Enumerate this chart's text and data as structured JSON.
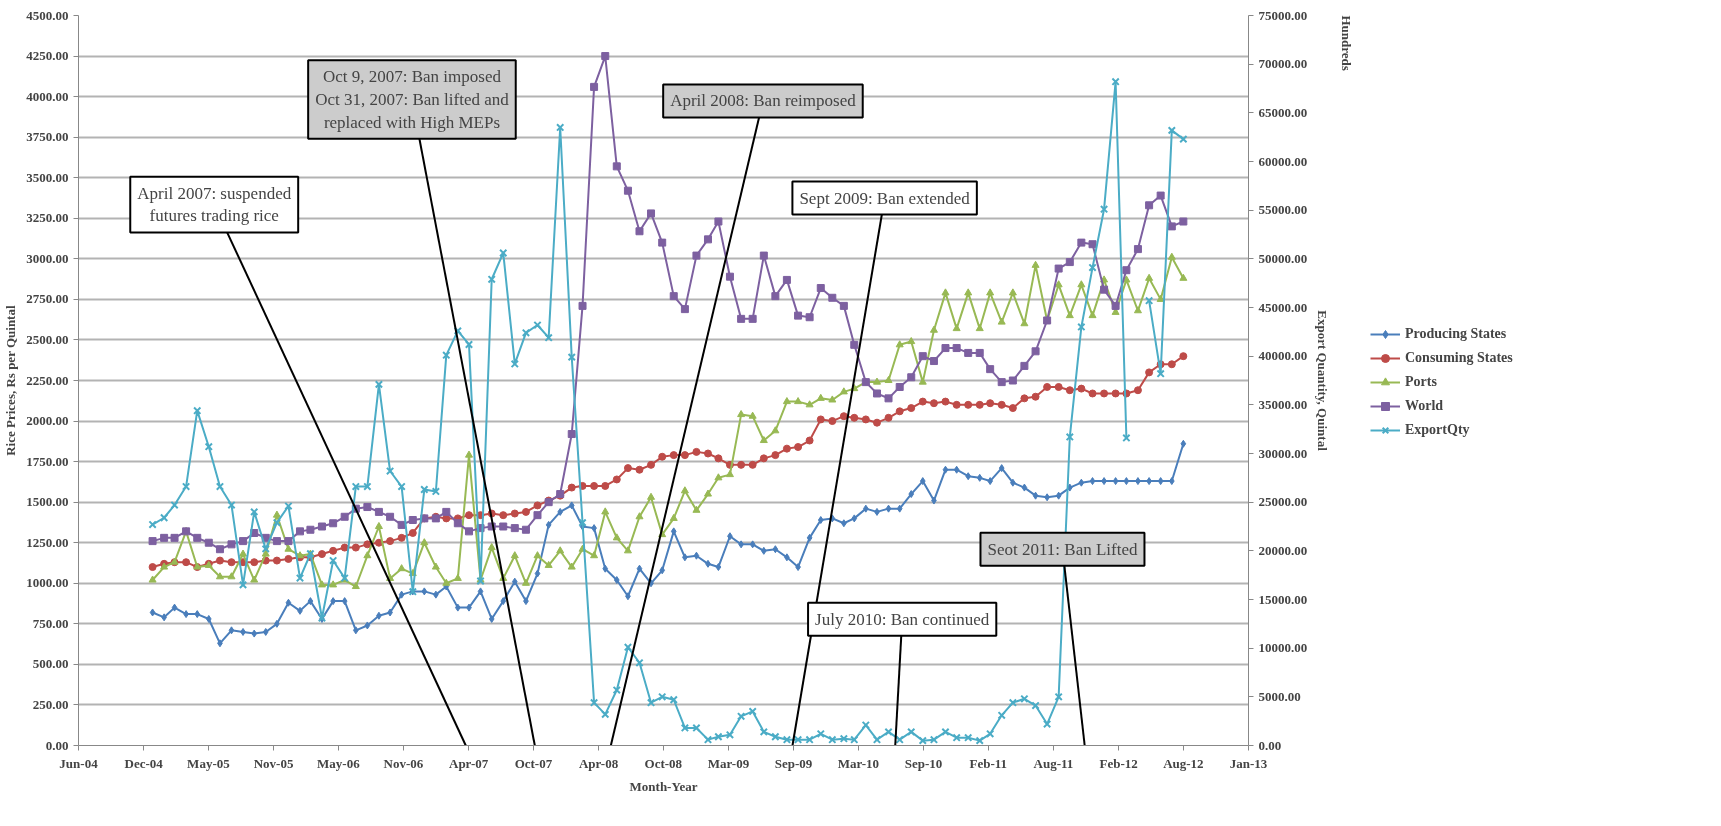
{
  "chart_data": {
    "type": "line",
    "xlabel": "Month-Year",
    "ylabel": "Rice Prices, Rs per Quintal",
    "y2label": "Export Quantity, Quintal",
    "x": [
      "2005-01",
      "2005-02",
      "2005-03",
      "2005-04",
      "2005-05",
      "2005-06",
      "2005-07",
      "2005-08",
      "2005-09",
      "2005-10",
      "2005-11",
      "2005-12",
      "2006-01",
      "2006-02",
      "2006-03",
      "2006-04",
      "2006-05",
      "2006-06",
      "2006-07",
      "2006-08",
      "2006-09",
      "2006-10",
      "2006-11",
      "2006-12",
      "2007-01",
      "2007-02",
      "2007-03",
      "2007-04",
      "2007-05",
      "2007-06",
      "2007-07",
      "2007-08",
      "2007-09",
      "2007-10",
      "2007-11",
      "2007-12",
      "2008-01",
      "2008-02",
      "2008-03",
      "2008-04",
      "2008-05",
      "2008-06",
      "2008-07",
      "2008-08",
      "2008-09",
      "2008-10",
      "2008-11",
      "2008-12",
      "2009-01",
      "2009-02",
      "2009-03",
      "2009-04",
      "2009-05",
      "2009-06",
      "2009-07",
      "2009-08",
      "2009-09",
      "2009-10",
      "2009-11",
      "2009-12",
      "2010-01",
      "2010-02",
      "2010-03",
      "2010-04",
      "2010-05",
      "2010-06",
      "2010-07",
      "2010-08",
      "2010-09",
      "2010-10",
      "2010-11",
      "2010-12",
      "2011-01",
      "2011-02",
      "2011-03",
      "2011-04",
      "2011-05",
      "2011-06",
      "2011-07",
      "2011-08",
      "2011-09",
      "2011-10",
      "2011-11",
      "2011-12",
      "2012-01",
      "2012-02",
      "2012-03",
      "2012-04",
      "2012-05",
      "2012-06",
      "2012-07",
      "2012-08"
    ],
    "series": [
      {
        "name": "Producing States",
        "color": "#4a7ebb",
        "marker": "diamond",
        "values": [
          820,
          790,
          850,
          810,
          810,
          780,
          630,
          710,
          700,
          690,
          700,
          750,
          880,
          830,
          890,
          780,
          890,
          890,
          710,
          740,
          800,
          820,
          930,
          950,
          950,
          930,
          980,
          850,
          850,
          950,
          780,
          890,
          1010,
          890,
          1060,
          1360,
          1440,
          1480,
          1350,
          1340,
          1090,
          1020,
          920,
          1090,
          1000,
          1080,
          1320,
          1160,
          1170,
          1120,
          1100,
          1290,
          1240,
          1240,
          1200,
          1210,
          1160,
          1100,
          1280,
          1390,
          1400,
          1370,
          1400,
          1460,
          1440,
          1460,
          1460,
          1550,
          1630,
          1510,
          1700,
          1700,
          1660,
          1650,
          1630,
          1710,
          1620,
          1590,
          1540,
          1530,
          1540,
          1590,
          1620,
          1630,
          1630,
          1630,
          1630,
          1630,
          1630,
          1630,
          1630,
          1860
        ]
      },
      {
        "name": "Consuming States",
        "color": "#be4b48",
        "marker": "circle",
        "values": [
          1100,
          1120,
          1130,
          1130,
          1100,
          1120,
          1140,
          1130,
          1130,
          1130,
          1140,
          1140,
          1150,
          1160,
          1160,
          1180,
          1200,
          1220,
          1220,
          1240,
          1250,
          1260,
          1280,
          1310,
          1400,
          1410,
          1400,
          1400,
          1420,
          1420,
          1430,
          1420,
          1430,
          1440,
          1480,
          1510,
          1540,
          1590,
          1600,
          1600,
          1600,
          1640,
          1710,
          1700,
          1730,
          1780,
          1790,
          1790,
          1810,
          1800,
          1770,
          1730,
          1730,
          1730,
          1770,
          1790,
          1830,
          1840,
          1880,
          2010,
          2000,
          2030,
          2020,
          2010,
          1990,
          2020,
          2060,
          2080,
          2120,
          2110,
          2120,
          2100,
          2100,
          2100,
          2110,
          2100,
          2080,
          2140,
          2150,
          2210,
          2210,
          2190,
          2200,
          2170,
          2170,
          2170,
          2170,
          2190,
          2300,
          2350,
          2350,
          2400
        ]
      },
      {
        "name": "Ports",
        "color": "#98b954",
        "marker": "triangle",
        "values": [
          1020,
          1100,
          1130,
          1320,
          1100,
          1110,
          1040,
          1040,
          1180,
          1020,
          1180,
          1420,
          1210,
          1170,
          1180,
          990,
          990,
          1020,
          980,
          1170,
          1350,
          1030,
          1090,
          1060,
          1250,
          1100,
          1000,
          1030,
          1790,
          1020,
          1220,
          1030,
          1170,
          1000,
          1170,
          1110,
          1200,
          1100,
          1210,
          1170,
          1440,
          1280,
          1200,
          1410,
          1530,
          1300,
          1400,
          1570,
          1450,
          1550,
          1650,
          1670,
          2040,
          2030,
          1880,
          1940,
          2120,
          2120,
          2100,
          2140,
          2130,
          2180,
          2200,
          2240,
          2240,
          2250,
          2470,
          2490,
          2240,
          2560,
          2790,
          2570,
          2790,
          2570,
          2790,
          2610,
          2790,
          2600,
          2960,
          2620,
          2840,
          2650,
          2840,
          2650,
          2870,
          2670,
          2870,
          2680,
          2880,
          2750,
          3010,
          2880
        ]
      },
      {
        "name": "World",
        "color": "#7d60a0",
        "marker": "square",
        "values": [
          1260,
          1280,
          1280,
          1320,
          1280,
          1250,
          1210,
          1240,
          1260,
          1310,
          1280,
          1260,
          1260,
          1320,
          1330,
          1350,
          1370,
          1410,
          1460,
          1470,
          1440,
          1410,
          1360,
          1390,
          1400,
          1400,
          1440,
          1370,
          1320,
          1340,
          1350,
          1350,
          1340,
          1330,
          1420,
          1500,
          1550,
          1920,
          2710,
          4060,
          4250,
          3570,
          3420,
          3170,
          3280,
          3100,
          2770,
          2690,
          3020,
          3120,
          3230,
          2890,
          2630,
          2630,
          3020,
          2770,
          2870,
          2650,
          2640,
          2820,
          2760,
          2710,
          2470,
          2240,
          2170,
          2140,
          2210,
          2270,
          2400,
          2370,
          2450,
          2450,
          2420,
          2420,
          2320,
          2240,
          2250,
          2340,
          2430,
          2620,
          2940,
          2980,
          3100,
          3090,
          2810,
          2710,
          2930,
          3060,
          3330,
          3390,
          3200,
          3230
        ]
      },
      {
        "name": "ExportQty",
        "color": "#4bacc6",
        "marker": "cross",
        "axis": "y2",
        "values": [
          22700,
          23400,
          24700,
          26600,
          34400,
          30700,
          26600,
          24700,
          16500,
          24000,
          20200,
          22900,
          24600,
          17200,
          19700,
          13100,
          19000,
          17200,
          26600,
          26600,
          37100,
          28200,
          26600,
          15800,
          26300,
          26100,
          40100,
          42600,
          41200,
          16900,
          47900,
          50600,
          39200,
          42400,
          43200,
          41900,
          63500,
          39900,
          22900,
          4400,
          3200,
          5700,
          10100,
          8500,
          4400,
          5000,
          4700,
          1800,
          1800,
          600,
          900,
          1100,
          3000,
          3500,
          1400,
          900,
          600,
          600,
          600,
          1200,
          600,
          700,
          600,
          2100,
          600,
          1400,
          600,
          1400,
          500,
          600,
          1400,
          800,
          800,
          500,
          1200,
          3100,
          4400,
          4800,
          4100,
          2200,
          5000,
          31700,
          43000,
          49100,
          55100,
          68200,
          31600,
          null,
          45700,
          38200,
          63200,
          62300
        ]
      }
    ],
    "xlim": [
      "2004-06-16",
      "2013-01-23"
    ],
    "xticks": [
      {
        "value": "2004-06-16",
        "label": "Jun-04"
      },
      {
        "value": "2004-12-08",
        "label": "Dec-04"
      },
      {
        "value": "2005-05-31",
        "label": "May-05"
      },
      {
        "value": "2005-11-22",
        "label": "Nov-05"
      },
      {
        "value": "2006-05-15",
        "label": "May-06"
      },
      {
        "value": "2006-11-06",
        "label": "Nov-06"
      },
      {
        "value": "2007-04-30",
        "label": "Apr-07"
      },
      {
        "value": "2007-10-21",
        "label": "Oct-07"
      },
      {
        "value": "2008-04-13",
        "label": "Apr-08"
      },
      {
        "value": "2008-10-04",
        "label": "Oct-08"
      },
      {
        "value": "2009-03-28",
        "label": "Mar-09"
      },
      {
        "value": "2009-09-19",
        "label": "Sep-09"
      },
      {
        "value": "2010-03-12",
        "label": "Mar-10"
      },
      {
        "value": "2010-09-03",
        "label": "Sep-10"
      },
      {
        "value": "2011-02-24",
        "label": "Feb-11"
      },
      {
        "value": "2011-08-18",
        "label": "Aug-11"
      },
      {
        "value": "2012-02-09",
        "label": "Feb-12"
      },
      {
        "value": "2012-08-01",
        "label": "Aug-12"
      },
      {
        "value": "2013-01-23",
        "label": "Jan-13"
      }
    ],
    "ylim": [
      0,
      4500
    ],
    "yticks": [
      {
        "value": 0,
        "label": "0.00"
      },
      {
        "value": 250,
        "label": "250.00"
      },
      {
        "value": 500,
        "label": "500.00"
      },
      {
        "value": 750,
        "label": "750.00"
      },
      {
        "value": 1000,
        "label": "1000.00"
      },
      {
        "value": 1250,
        "label": "1250.00"
      },
      {
        "value": 1500,
        "label": "1500.00"
      },
      {
        "value": 1750,
        "label": "1750.00"
      },
      {
        "value": 2000,
        "label": "2000.00"
      },
      {
        "value": 2250,
        "label": "2250.00"
      },
      {
        "value": 2500,
        "label": "2500.00"
      },
      {
        "value": 2750,
        "label": "2750.00"
      },
      {
        "value": 3000,
        "label": "3000.00"
      },
      {
        "value": 3250,
        "label": "3250.00"
      },
      {
        "value": 3500,
        "label": "3500.00"
      },
      {
        "value": 3750,
        "label": "3750.00"
      },
      {
        "value": 4000,
        "label": "4000.00"
      },
      {
        "value": 4250,
        "label": "4250.00"
      },
      {
        "value": 4500,
        "label": "4500.00"
      }
    ],
    "y2lim": [
      0,
      75000
    ],
    "y2ticks": [
      {
        "value": 0,
        "label": "0.00"
      },
      {
        "value": 5000,
        "label": "5000.00"
      },
      {
        "value": 10000,
        "label": "10000.00"
      },
      {
        "value": 15000,
        "label": "15000.00"
      },
      {
        "value": 20000,
        "label": "20000.00"
      },
      {
        "value": 25000,
        "label": "25000.00"
      },
      {
        "value": 30000,
        "label": "30000.00"
      },
      {
        "value": 35000,
        "label": "35000.00"
      },
      {
        "value": 40000,
        "label": "40000.00"
      },
      {
        "value": 45000,
        "label": "45000.00"
      },
      {
        "value": 50000,
        "label": "50000.00"
      },
      {
        "value": 55000,
        "label": "55000.00"
      },
      {
        "value": 60000,
        "label": "60000.00"
      },
      {
        "value": 65000,
        "label": "65000.00"
      },
      {
        "value": 70000,
        "label": "70000.00"
      },
      {
        "value": 75000,
        "label": "75000.00"
      }
    ],
    "grid": "y",
    "legend": "right",
    "annotations": [
      "April 2007: suspended\nfutures trading rice",
      "Oct 9, 2007: Ban imposed\nOct 31, 2007: Ban lifted and\nreplaced with High MEPs",
      "April 2008: Ban reimposed",
      {
        "text": "Sept 2009: Ban extended",
        "x": "2009-09-16",
        "y": 0
      },
      {
        "text": "July 2010: Ban continued",
        "x": "2010-06-19",
        "y": 0
      },
      "Seot 2011: Ban Lifted",
      "Hundreds"
    ]
  }
}
